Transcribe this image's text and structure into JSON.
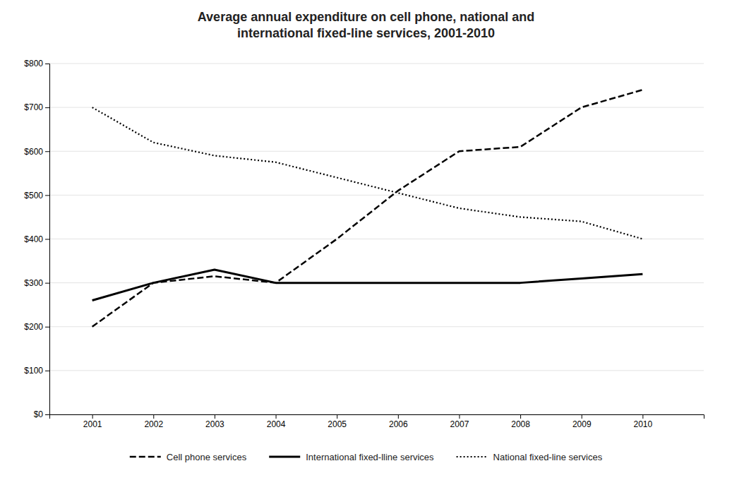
{
  "chart_data": {
    "type": "line",
    "title": "Average annual expenditure on cell phone, national and\ninternational fixed-line services, 2001-2010",
    "x": [
      2001,
      2002,
      2003,
      2004,
      2005,
      2006,
      2007,
      2008,
      2009,
      2010
    ],
    "series": [
      {
        "name": "Cell phone services",
        "color": "#000000",
        "line_style": "dashed",
        "values": [
          200,
          300,
          315,
          300,
          400,
          510,
          600,
          610,
          700,
          740
        ]
      },
      {
        "name": "International fixed-lline services",
        "color": "#000000",
        "line_style": "solid",
        "values": [
          260,
          300,
          330,
          300,
          300,
          300,
          300,
          300,
          310,
          320
        ]
      },
      {
        "name": "National fixed-line services",
        "color": "#000000",
        "line_style": "dotted",
        "values": [
          700,
          620,
          590,
          575,
          540,
          505,
          470,
          450,
          440,
          400
        ]
      }
    ],
    "xlim": [
      2000.3,
      2011.0
    ],
    "xticks": [
      2001,
      2002,
      2003,
      2004,
      2005,
      2006,
      2007,
      2008,
      2009,
      2010
    ],
    "ylim": [
      0,
      800
    ],
    "yticks": [
      {
        "value": 0,
        "label": "$0"
      },
      {
        "value": 100,
        "label": "$100"
      },
      {
        "value": 200,
        "label": "$200"
      },
      {
        "value": 300,
        "label": "$300"
      },
      {
        "value": 400,
        "label": "$400"
      },
      {
        "value": 500,
        "label": "$500"
      },
      {
        "value": 600,
        "label": "$600"
      },
      {
        "value": 700,
        "label": "$700"
      },
      {
        "value": 800,
        "label": "$800"
      }
    ],
    "grid": true,
    "legend": "bottom"
  }
}
